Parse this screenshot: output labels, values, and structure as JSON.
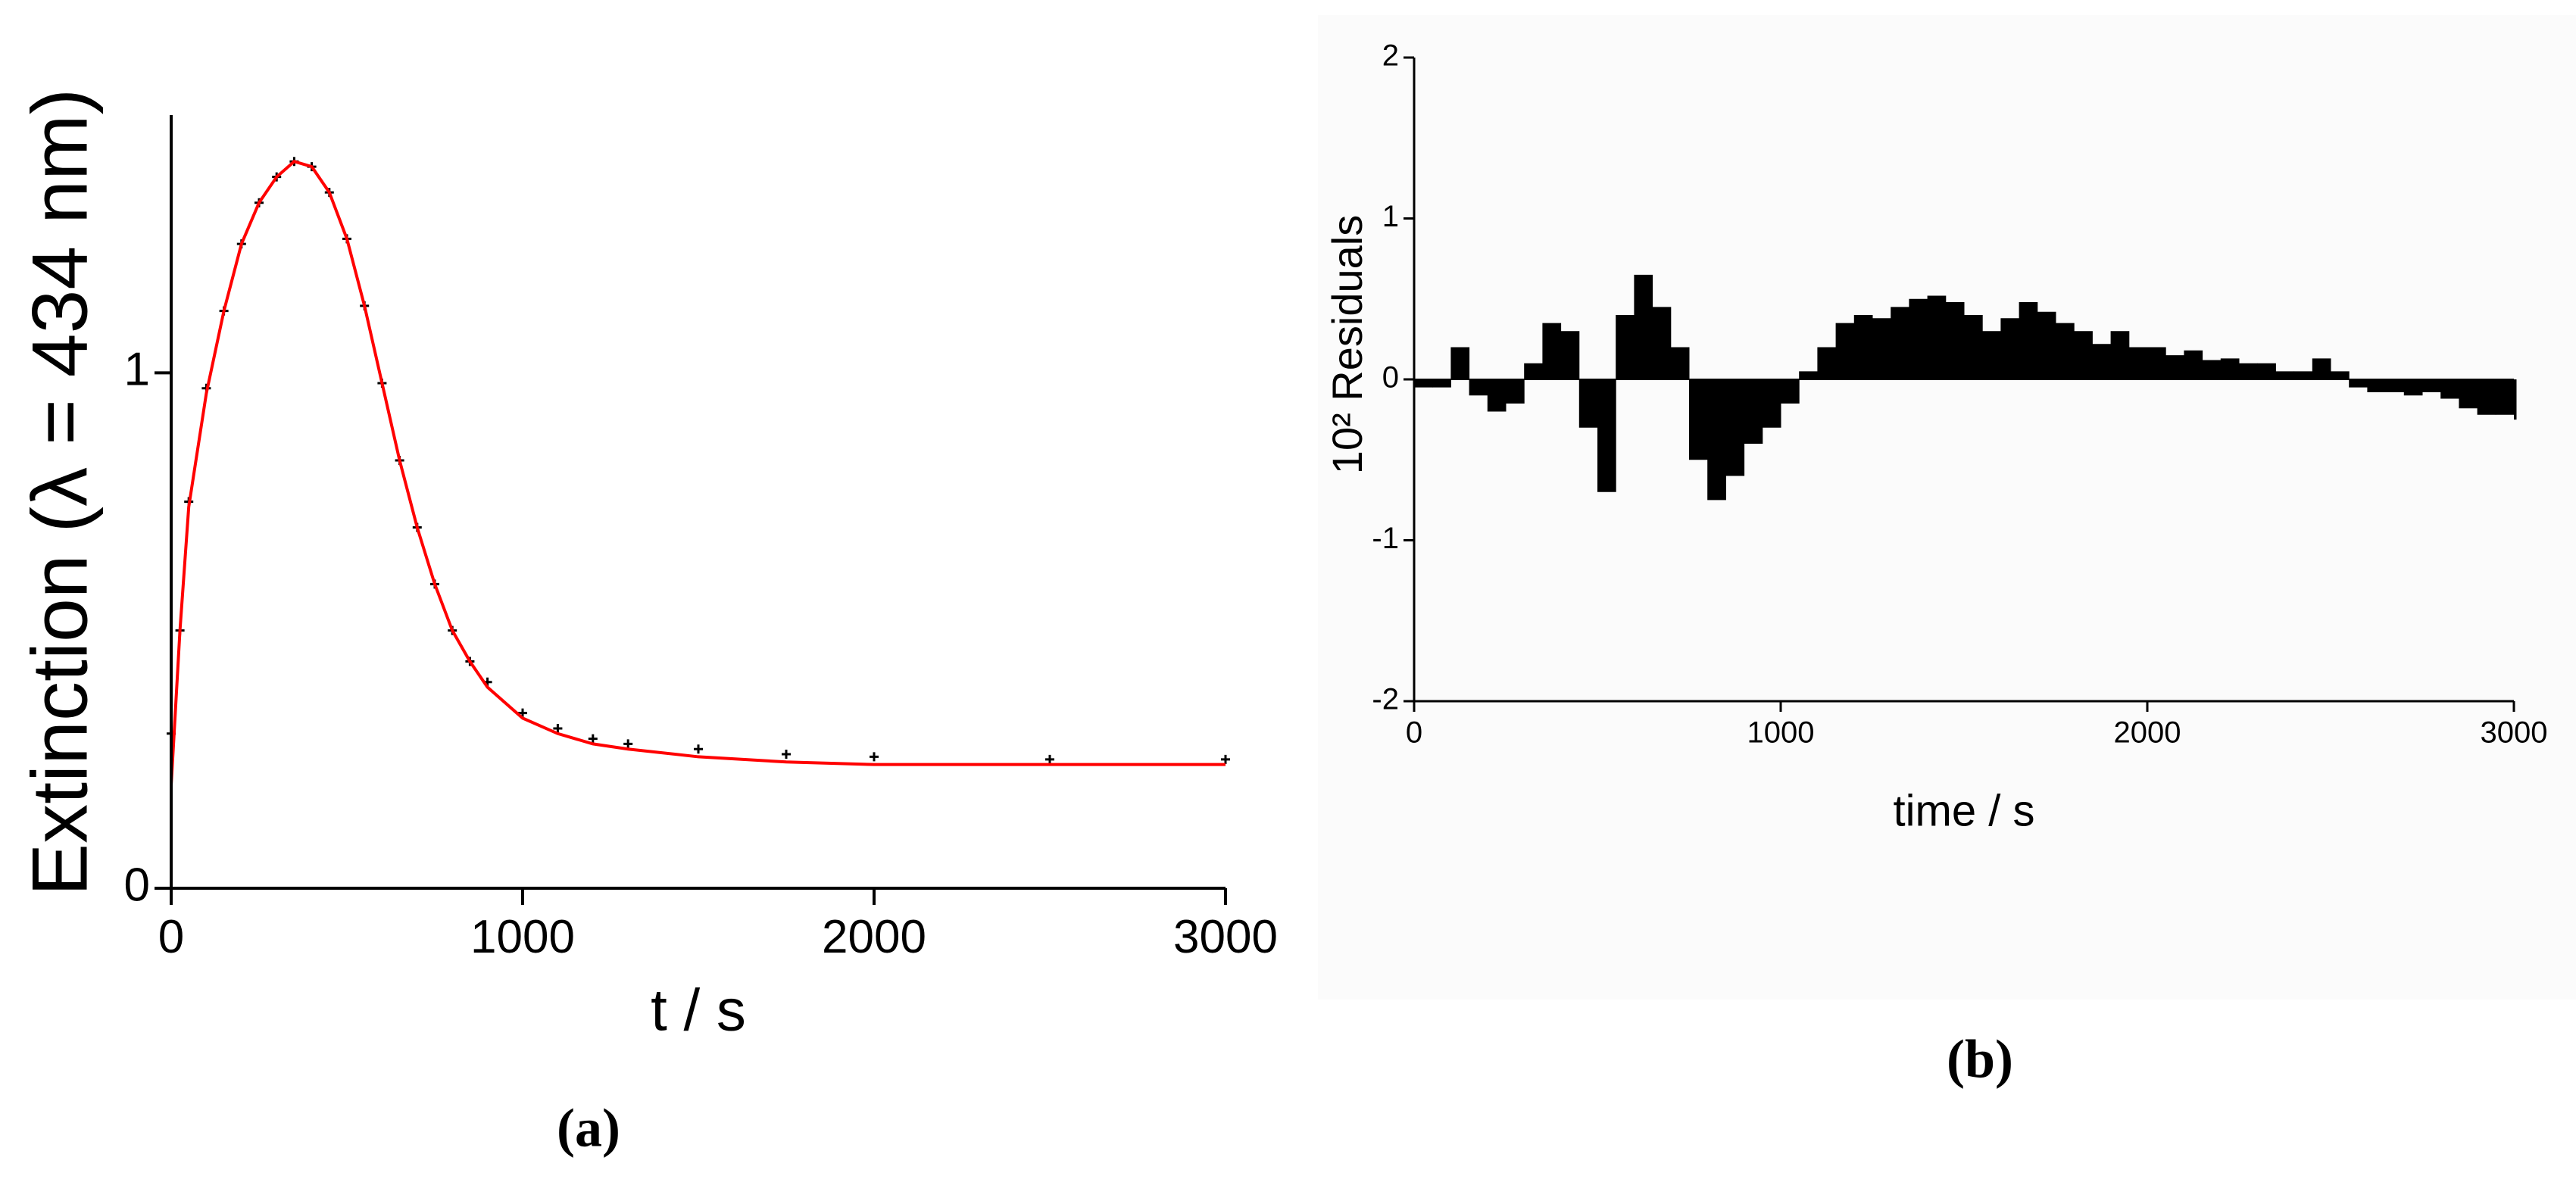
{
  "chart_data": [
    {
      "type": "line",
      "panel_label": "(a)",
      "xlabel": "t / s",
      "ylabel": "Extinction (λ = 434 nm)",
      "xlim": [
        0,
        3000
      ],
      "ylim": [
        0,
        1.5
      ],
      "xticks": [
        0,
        1000,
        2000,
        3000
      ],
      "yticks": [
        0,
        1
      ],
      "x": [
        0,
        25,
        50,
        100,
        150,
        200,
        250,
        300,
        350,
        400,
        450,
        500,
        550,
        600,
        650,
        700,
        750,
        800,
        850,
        900,
        1000,
        1100,
        1200,
        1300,
        1500,
        1750,
        2000,
        2500,
        3000
      ],
      "series": [
        {
          "color": "#000000",
          "style": "markers",
          "values": [
            0.3,
            0.5,
            0.75,
            0.97,
            1.12,
            1.25,
            1.33,
            1.38,
            1.41,
            1.4,
            1.35,
            1.26,
            1.13,
            0.98,
            0.83,
            0.7,
            0.59,
            0.5,
            0.44,
            0.4,
            0.34,
            0.31,
            0.29,
            0.28,
            0.27,
            0.26,
            0.255,
            0.25,
            0.25
          ]
        },
        {
          "color": "#ff0000",
          "style": "line",
          "values": [
            0.2,
            0.5,
            0.74,
            0.96,
            1.12,
            1.25,
            1.33,
            1.38,
            1.41,
            1.4,
            1.35,
            1.26,
            1.13,
            0.98,
            0.83,
            0.7,
            0.59,
            0.5,
            0.44,
            0.39,
            0.33,
            0.3,
            0.28,
            0.27,
            0.255,
            0.245,
            0.24,
            0.24,
            0.24
          ]
        }
      ]
    },
    {
      "type": "bar",
      "panel_label": "(b)",
      "xlabel": "time / s",
      "ylabel": "10² Residuals",
      "color": "#000000",
      "xlim": [
        0,
        3000
      ],
      "ylim": [
        -2,
        2
      ],
      "xticks": [
        0,
        1000,
        2000,
        3000
      ],
      "yticks": [
        -2,
        -1,
        0,
        1,
        2
      ],
      "x": [
        0,
        50,
        100,
        150,
        200,
        250,
        300,
        350,
        400,
        450,
        500,
        550,
        600,
        650,
        700,
        750,
        800,
        850,
        900,
        950,
        1000,
        1050,
        1100,
        1150,
        1200,
        1250,
        1300,
        1350,
        1400,
        1450,
        1500,
        1550,
        1600,
        1650,
        1700,
        1750,
        1800,
        1850,
        1900,
        1950,
        2000,
        2050,
        2100,
        2150,
        2200,
        2250,
        2300,
        2350,
        2400,
        2450,
        2500,
        2550,
        2600,
        2650,
        2700,
        2750,
        2800,
        2850,
        2900,
        2950,
        3000
      ],
      "values": [
        -0.05,
        -0.05,
        0.2,
        -0.1,
        -0.2,
        -0.15,
        0.1,
        0.35,
        0.3,
        -0.3,
        -0.7,
        0.4,
        0.65,
        0.45,
        0.2,
        -0.5,
        -0.75,
        -0.6,
        -0.4,
        -0.3,
        -0.15,
        0.05,
        0.2,
        0.35,
        0.4,
        0.38,
        0.45,
        0.5,
        0.52,
        0.48,
        0.4,
        0.3,
        0.38,
        0.48,
        0.42,
        0.35,
        0.3,
        0.22,
        0.3,
        0.2,
        0.2,
        0.15,
        0.18,
        0.12,
        0.13,
        0.1,
        0.1,
        0.05,
        0.05,
        0.13,
        0.05,
        -0.05,
        -0.08,
        -0.08,
        -0.1,
        -0.08,
        -0.12,
        -0.18,
        -0.22,
        -0.22,
        -0.25
      ]
    }
  ]
}
